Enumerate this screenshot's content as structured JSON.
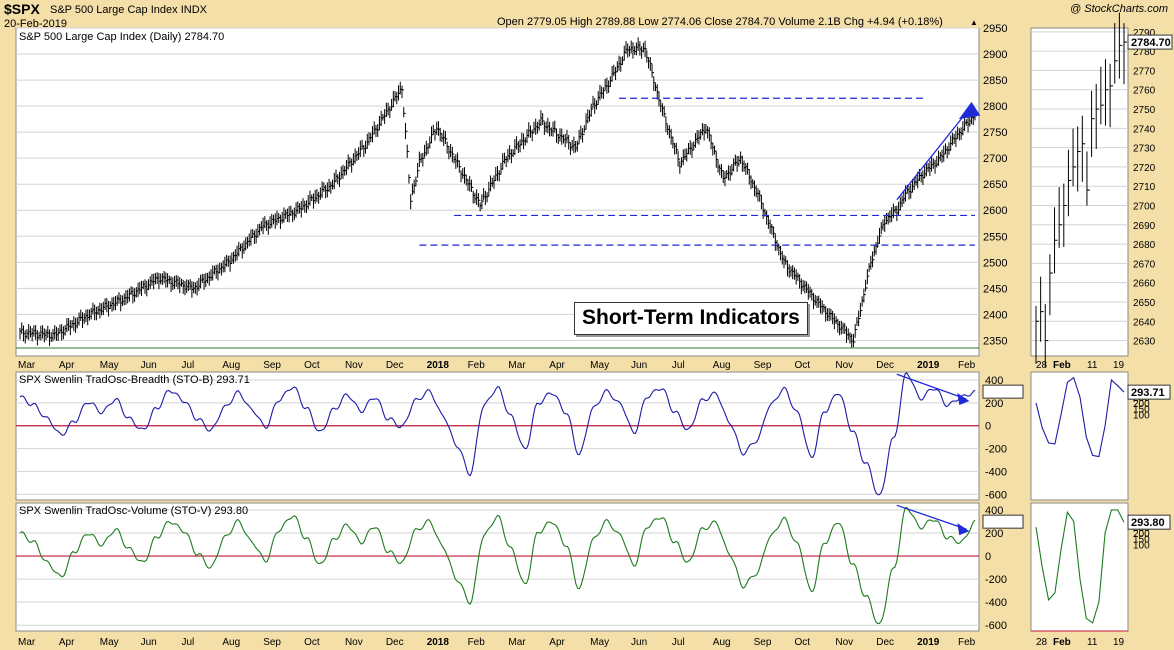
{
  "header": {
    "ticker": "$SPX",
    "name": "S&P 500 Large Cap Index",
    "exchange": "INDX",
    "date": "20-Feb-2019",
    "copyright": "@ StockCharts.com",
    "ohlc": "Open 2779.05  High 2789.88  Low 2774.06  Close 2784.70  Volume 2.1B  Chg +4.94 (+0.18%)"
  },
  "annotation": "Short-Term Indicators",
  "colors": {
    "background": "#f4dfa8",
    "panel": "#ffffff",
    "grid": "#d3d3d3",
    "price_bars": "#000000",
    "breadth": "#1c1ca8",
    "volume": "#1e7b1e",
    "zero_line": "#c21a3c",
    "trend_lines": "#1e2ad8"
  },
  "x_axis_labels": [
    "Mar",
    "Apr",
    "May",
    "Jun",
    "Jul",
    "Aug",
    "Sep",
    "Oct",
    "Nov",
    "Dec",
    "2018",
    "Feb",
    "Mar",
    "Apr",
    "May",
    "Jun",
    "Jul",
    "Aug",
    "Sep",
    "Oct",
    "Nov",
    "Dec",
    "2019",
    "Feb"
  ],
  "zoom_x_labels": [
    "28",
    "Feb",
    "11",
    "19"
  ],
  "chart_data": [
    {
      "type": "line",
      "subtype": "ohlc-bars",
      "title": "S&P 500 Large Cap Index (Daily) 2784.70",
      "ylim": [
        2320,
        2950
      ],
      "y_ticks": [
        2350,
        2400,
        2450,
        2500,
        2550,
        2600,
        2650,
        2700,
        2750,
        2800,
        2850,
        2900,
        2950
      ],
      "last_value": "2784.70",
      "grid": true,
      "x_index": [
        0,
        20,
        40,
        60,
        80,
        100,
        120,
        140,
        160,
        180,
        200,
        220,
        225,
        230,
        240,
        255,
        265,
        280,
        300,
        320,
        330,
        340,
        350,
        360,
        370,
        380,
        395,
        405,
        415,
        425,
        440,
        460,
        480,
        490,
        498,
        505,
        510,
        520,
        530,
        540,
        550
      ],
      "values": [
        2365,
        2360,
        2400,
        2430,
        2470,
        2450,
        2500,
        2570,
        2600,
        2650,
        2730,
        2835,
        2620,
        2690,
        2760,
        2670,
        2610,
        2700,
        2770,
        2720,
        2800,
        2850,
        2910,
        2910,
        2790,
        2690,
        2760,
        2660,
        2700,
        2630,
        2500,
        2420,
        2350,
        2500,
        2580,
        2600,
        2630,
        2670,
        2700,
        2745,
        2785
      ],
      "support_resistance": [
        {
          "level": 2815,
          "note": "dashed resistance"
        },
        {
          "level": 2590,
          "note": "dashed support"
        },
        {
          "level": 2533,
          "note": "dashed support"
        }
      ]
    },
    {
      "type": "line",
      "title": "SPX Swenlin TradOsc-Breadth (STO-B) 293.71",
      "series": [
        {
          "name": "SPX Swenlin TradOsc-Breadth (STO-B)",
          "values": [
            250,
            180,
            60,
            -80,
            40,
            210,
            120,
            230,
            60,
            -40,
            150,
            310,
            220,
            60,
            -40,
            160,
            290,
            140,
            -10,
            230,
            340,
            150,
            -60,
            140,
            270,
            130,
            250,
            60,
            -10,
            220,
            300,
            90,
            -170,
            -420,
            180,
            330,
            80,
            -210,
            200,
            290,
            120,
            -250,
            150,
            300,
            190,
            -60,
            260,
            330,
            120,
            -40,
            220,
            280,
            30,
            -240,
            -130,
            180,
            320,
            110,
            -280,
            130,
            290,
            -40,
            -330,
            -620,
            -120,
            460,
            240,
            330,
            180,
            250,
            293.71
          ]
        }
      ],
      "ylim": [
        -650,
        470
      ],
      "y_ticks": [
        -600,
        -400,
        -200,
        0,
        200,
        400
      ],
      "last_value": "293.71",
      "zoom_values": [
        200,
        -20,
        -150,
        -160,
        100,
        380,
        420,
        250,
        -100,
        -260,
        -270,
        0,
        400,
        350,
        293.71
      ],
      "zoom_y_ticks": [
        100,
        150,
        200,
        250,
        293.71
      ]
    },
    {
      "type": "line",
      "title": "SPX Swenlin TradOsc-Volume (STO-V) 293.80",
      "series": [
        {
          "name": "SPX Swenlin TradOsc-Volume (STO-V)",
          "values": [
            200,
            120,
            -60,
            -180,
            40,
            200,
            100,
            230,
            60,
            -60,
            160,
            300,
            220,
            20,
            -100,
            160,
            300,
            120,
            -40,
            230,
            350,
            150,
            -80,
            140,
            270,
            120,
            260,
            40,
            -60,
            220,
            300,
            80,
            -200,
            -400,
            180,
            340,
            60,
            -250,
            210,
            300,
            100,
            -280,
            140,
            300,
            180,
            -80,
            260,
            340,
            120,
            -60,
            230,
            290,
            20,
            -260,
            -150,
            170,
            320,
            100,
            -310,
            120,
            300,
            -60,
            -350,
            -600,
            -120,
            420,
            250,
            320,
            160,
            120,
            293.8
          ]
        }
      ],
      "ylim": [
        -650,
        460
      ],
      "y_ticks": [
        -600,
        -400,
        -200,
        0,
        200,
        400
      ],
      "last_value": "293.80",
      "zoom_values": [
        250,
        -100,
        -380,
        -320,
        60,
        380,
        300,
        -200,
        -540,
        -580,
        -400,
        200,
        400,
        400,
        293.8
      ],
      "zoom_y_ticks": [
        100,
        150,
        200,
        250,
        293.8
      ]
    }
  ],
  "zoom_price": {
    "ylim": [
      2622,
      2792
    ],
    "y_ticks": [
      2630,
      2640,
      2650,
      2660,
      2670,
      2680,
      2690,
      2700,
      2710,
      2720,
      2730,
      2740,
      2750,
      2760,
      2770,
      2780,
      2790
    ],
    "values": [
      2640,
      2645,
      2630,
      2665,
      2682,
      2690,
      2700,
      2713,
      2720,
      2728,
      2732,
      2708,
      2745,
      2750,
      2752,
      2760,
      2762,
      2775,
      2783,
      2784.7
    ],
    "last_value": "2784.70"
  }
}
